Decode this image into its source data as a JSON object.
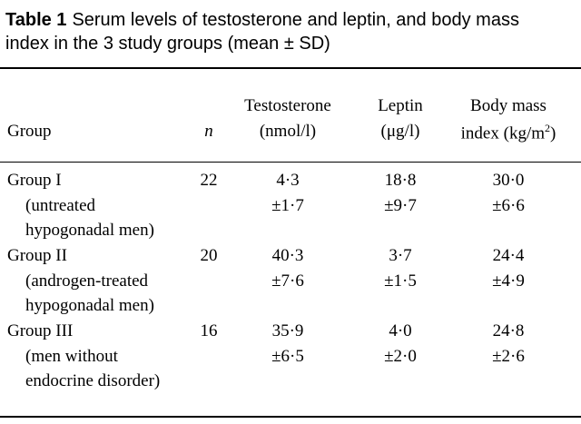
{
  "caption": {
    "label": "Table 1",
    "lines": [
      "Serum levels of testosterone and leptin, and body mass",
      "index in the 3 study groups (mean ± SD)"
    ]
  },
  "table": {
    "header": {
      "group": "Group",
      "n": "n",
      "testosterone": [
        "Testosterone",
        "(nmol/l)"
      ],
      "leptin": [
        "Leptin",
        "(μg/l)"
      ],
      "bmi": {
        "line1": "Body mass",
        "line2": "index (kg/m",
        "sup": "2",
        "close": ")"
      }
    },
    "rows": [
      {
        "group": [
          "Group I",
          "(untreated",
          "hypogonadal men)"
        ],
        "n": "22",
        "testosterone": [
          "4·3",
          "±1·7"
        ],
        "leptin": [
          "18·8",
          "±9·7"
        ],
        "bmi": [
          "30·0",
          "±6·6"
        ]
      },
      {
        "group": [
          "Group II",
          "(androgen-treated",
          "hypogonadal men)"
        ],
        "n": "20",
        "testosterone": [
          "40·3",
          "±7·6"
        ],
        "leptin": [
          "3·7",
          "±1·5"
        ],
        "bmi": [
          "24·4",
          "±4·9"
        ]
      },
      {
        "group": [
          "Group III",
          "(men without",
          "endocrine disorder)"
        ],
        "n": "16",
        "testosterone": [
          "35·9",
          "±6·5"
        ],
        "leptin": [
          "4·0",
          "±2·0"
        ],
        "bmi": [
          "24·8",
          "±2·6"
        ]
      }
    ]
  }
}
